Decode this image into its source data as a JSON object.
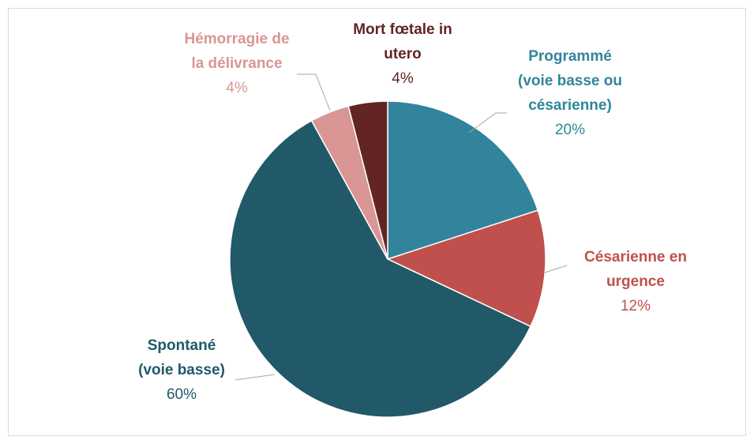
{
  "chart_data": {
    "type": "pie",
    "categories": [
      "Programmé (voie basse ou césarienne)",
      "Césarienne en urgence",
      "Spontané (voie basse)",
      "Hémorragie de la délivrance",
      "Mort fœtale in utero"
    ],
    "values": [
      20,
      12,
      60,
      4,
      4
    ],
    "value_labels": [
      "20%",
      "12%",
      "60%",
      "4%",
      "4%"
    ],
    "colors": [
      "#31849b",
      "#c0504d",
      "#215968",
      "#d99694",
      "#632523"
    ]
  }
}
